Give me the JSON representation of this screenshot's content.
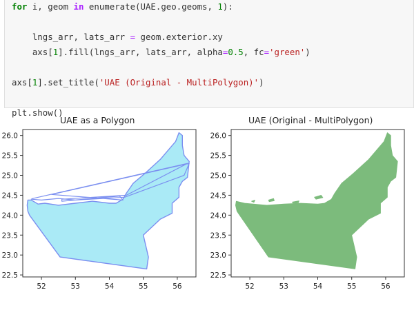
{
  "code": {
    "lines": [
      [
        {
          "t": "for",
          "c": "kw"
        },
        {
          "t": " i, geom ",
          "c": ""
        },
        {
          "t": "in",
          "c": "kwin"
        },
        {
          "t": " enumerate(UAE.geo.geoms, ",
          "c": ""
        },
        {
          "t": "1",
          "c": "num"
        },
        {
          "t": "):",
          "c": ""
        }
      ],
      [],
      [
        {
          "t": "    lngs_arr, lats_arr ",
          "c": ""
        },
        {
          "t": "=",
          "c": "op"
        },
        {
          "t": " geom.exterior.xy",
          "c": ""
        }
      ],
      [
        {
          "t": "    axs[",
          "c": ""
        },
        {
          "t": "1",
          "c": "num"
        },
        {
          "t": "].fill(lngs_arr, lats_arr, alpha",
          "c": ""
        },
        {
          "t": "=",
          "c": "op"
        },
        {
          "t": "0.5",
          "c": "num"
        },
        {
          "t": ", fc",
          "c": ""
        },
        {
          "t": "=",
          "c": "op"
        },
        {
          "t": "'green'",
          "c": "str"
        },
        {
          "t": ")",
          "c": ""
        }
      ],
      [],
      [
        {
          "t": "axs[",
          "c": ""
        },
        {
          "t": "1",
          "c": "num"
        },
        {
          "t": "].set_title(",
          "c": ""
        },
        {
          "t": "'UAE (Original - MultiPolygon)'",
          "c": "str"
        },
        {
          "t": ")",
          "c": ""
        }
      ],
      [],
      [
        {
          "t": "plt.show()",
          "c": ""
        }
      ]
    ]
  },
  "chart_data": [
    {
      "type": "area",
      "title": "UAE as a Polygon",
      "xlabel": "",
      "ylabel": "",
      "xticks": [
        52,
        53,
        54,
        55,
        56
      ],
      "yticks": [
        22.5,
        23.0,
        23.5,
        24.0,
        24.5,
        25.0,
        25.5,
        26.0
      ],
      "xlim": [
        51.45,
        56.55
      ],
      "ylim": [
        22.45,
        26.15
      ],
      "grid": false,
      "fill_color": "#aaeaf6",
      "edge_color": "#7b8ff0",
      "series": [
        {
          "values": [
            [
              51.6,
              24.38
            ],
            [
              51.58,
              24.25
            ],
            [
              51.6,
              24.1
            ],
            [
              51.65,
              24.0
            ],
            [
              52.55,
              22.95
            ],
            [
              55.1,
              22.65
            ],
            [
              55.15,
              22.95
            ],
            [
              55.0,
              23.5
            ],
            [
              55.5,
              23.9
            ],
            [
              55.85,
              24.05
            ],
            [
              55.85,
              24.3
            ],
            [
              56.05,
              24.45
            ],
            [
              56.05,
              24.7
            ],
            [
              56.15,
              24.85
            ],
            [
              56.3,
              24.95
            ],
            [
              56.35,
              25.35
            ],
            [
              56.2,
              25.5
            ],
            [
              56.15,
              25.75
            ],
            [
              56.15,
              26.0
            ],
            [
              56.05,
              26.07
            ],
            [
              55.95,
              25.85
            ],
            [
              55.7,
              25.6
            ],
            [
              55.5,
              25.4
            ],
            [
              55.05,
              25.05
            ],
            [
              54.7,
              24.8
            ],
            [
              54.5,
              24.55
            ],
            [
              54.4,
              24.4
            ],
            [
              54.2,
              24.3
            ],
            [
              54.0,
              24.3
            ],
            [
              53.5,
              24.35
            ],
            [
              53.0,
              24.3
            ],
            [
              52.5,
              24.25
            ],
            [
              52.1,
              24.3
            ],
            [
              51.9,
              24.28
            ],
            [
              51.7,
              24.38
            ],
            [
              51.6,
              24.38
            ]
          ]
        },
        {
          "values": [
            [
              51.7,
              24.4
            ],
            [
              52.0,
              24.38
            ],
            [
              52.5,
              24.42
            ],
            [
              53.0,
              24.38
            ],
            [
              54.45,
              24.45
            ],
            [
              56.2,
              25.0
            ],
            [
              56.35,
              25.3
            ],
            [
              52.3,
              24.52
            ],
            [
              54.4,
              24.38
            ],
            [
              54.3,
              24.48
            ],
            [
              52.6,
              24.35
            ],
            [
              52.6,
              24.4
            ],
            [
              54.5,
              24.5
            ],
            [
              56.3,
              25.3
            ],
            [
              51.75,
              24.42
            ]
          ]
        }
      ]
    },
    {
      "type": "area",
      "title": "UAE (Original - MultiPolygon)",
      "xlabel": "",
      "ylabel": "",
      "xticks": [
        52,
        53,
        54,
        55,
        56
      ],
      "yticks": [
        22.5,
        23.0,
        23.5,
        24.0,
        24.5,
        25.0,
        25.5,
        26.0
      ],
      "xlim": [
        51.45,
        56.55
      ],
      "ylim": [
        22.45,
        26.15
      ],
      "grid": false,
      "fill_color": "#7cbb7c",
      "edge_color": "#7cbb7c",
      "series": [
        {
          "values": [
            [
              51.6,
              24.35
            ],
            [
              51.58,
              24.25
            ],
            [
              51.62,
              24.1
            ],
            [
              51.7,
              24.0
            ],
            [
              52.55,
              22.95
            ],
            [
              55.1,
              22.65
            ],
            [
              55.15,
              22.95
            ],
            [
              55.0,
              23.5
            ],
            [
              55.5,
              23.9
            ],
            [
              55.85,
              24.05
            ],
            [
              55.85,
              24.3
            ],
            [
              56.05,
              24.45
            ],
            [
              56.05,
              24.7
            ],
            [
              56.15,
              24.85
            ],
            [
              56.3,
              24.95
            ],
            [
              56.35,
              25.35
            ],
            [
              56.2,
              25.5
            ],
            [
              56.15,
              25.75
            ],
            [
              56.15,
              26.0
            ],
            [
              56.05,
              26.07
            ],
            [
              55.95,
              25.85
            ],
            [
              55.7,
              25.6
            ],
            [
              55.5,
              25.4
            ],
            [
              55.05,
              25.05
            ],
            [
              54.7,
              24.8
            ],
            [
              54.5,
              24.55
            ],
            [
              54.4,
              24.4
            ],
            [
              54.2,
              24.3
            ],
            [
              54.0,
              24.28
            ],
            [
              53.5,
              24.3
            ],
            [
              53.0,
              24.28
            ],
            [
              52.5,
              24.25
            ],
            [
              52.1,
              24.28
            ],
            [
              51.85,
              24.3
            ],
            [
              51.6,
              24.35
            ]
          ]
        },
        {
          "values": [
            [
              53.9,
              24.45
            ],
            [
              54.1,
              24.5
            ],
            [
              54.15,
              24.44
            ],
            [
              53.95,
              24.4
            ]
          ]
        },
        {
          "values": [
            [
              53.25,
              24.33
            ],
            [
              53.45,
              24.36
            ],
            [
              53.43,
              24.31
            ],
            [
              53.27,
              24.3
            ]
          ]
        },
        {
          "values": [
            [
              52.55,
              24.38
            ],
            [
              52.7,
              24.42
            ],
            [
              52.72,
              24.36
            ],
            [
              52.57,
              24.34
            ]
          ]
        },
        {
          "values": [
            [
              54.55,
              24.55
            ],
            [
              54.65,
              24.6
            ],
            [
              54.6,
              24.52
            ]
          ]
        },
        {
          "values": [
            [
              52.05,
              24.35
            ],
            [
              52.15,
              24.38
            ],
            [
              52.12,
              24.32
            ]
          ]
        }
      ]
    }
  ]
}
